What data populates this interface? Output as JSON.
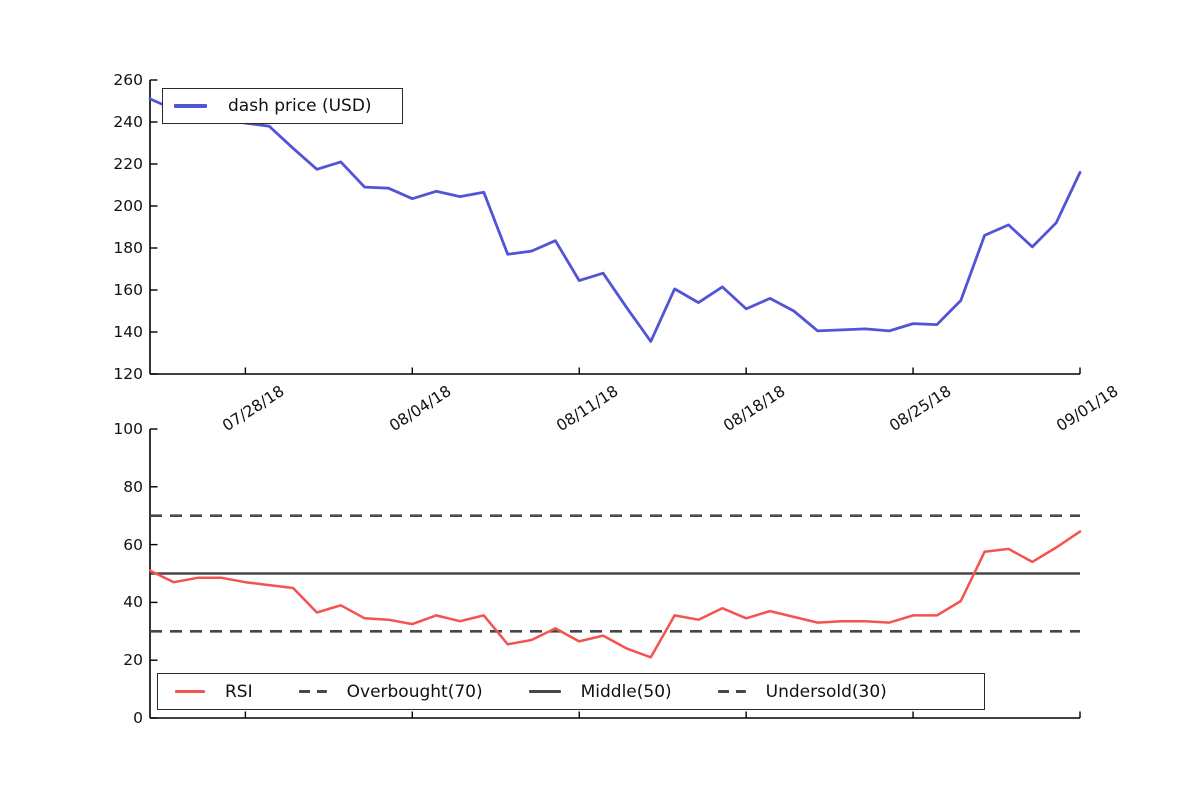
{
  "figure": {
    "background": "#ffffff",
    "text_color": "#111111",
    "spine_color": "#000000"
  },
  "chart_data": [
    {
      "type": "line",
      "panel": "top",
      "title": "",
      "xlabel": "",
      "ylabel": "",
      "ylim": [
        120,
        260
      ],
      "y_tick_labels": [
        "260",
        "240",
        "220",
        "200",
        "180",
        "160",
        "140",
        "120"
      ],
      "x_tick_labels": [
        "07/28/18",
        "08/04/18",
        "08/11/18",
        "08/18/18",
        "08/25/18",
        "09/01/18"
      ],
      "x_tick_indices": [
        4,
        11,
        18,
        25,
        32,
        39
      ],
      "grid": false,
      "legend": {
        "position": "upper-left",
        "items": [
          "dash price (USD)"
        ]
      },
      "series": [
        {
          "name": "dash price (USD)",
          "color": "#5254d6",
          "values": [
            251,
            246,
            243.5,
            241.5,
            239.5,
            238,
            227.5,
            217.5,
            221,
            209,
            208.5,
            203.5,
            207,
            204.5,
            206.5,
            177,
            178.5,
            183.5,
            164.5,
            168,
            151.5,
            135.5,
            160.5,
            154,
            161.5,
            151,
            156,
            150,
            140.5,
            141,
            141.5,
            140.5,
            144,
            143.5,
            155,
            186,
            191,
            180.5,
            192,
            216
          ]
        }
      ]
    },
    {
      "type": "line",
      "panel": "bottom",
      "title": "",
      "xlabel": "",
      "ylabel": "",
      "ylim": [
        0,
        100
      ],
      "y_tick_labels": [
        "100",
        "80",
        "60",
        "40",
        "20",
        "0"
      ],
      "x_tick_labels": [],
      "x_tick_indices": [
        4,
        11,
        18,
        25,
        32,
        39
      ],
      "grid": false,
      "legend": {
        "position": "lower-left",
        "items": [
          "RSI",
          "Overbought(70)",
          "Middle(50)",
          "Undersold(30)"
        ]
      },
      "series": [
        {
          "name": "RSI",
          "color": "#f4534f",
          "values": [
            51,
            47,
            48.5,
            48.5,
            47,
            46,
            45,
            36.5,
            39,
            34.5,
            34,
            32.5,
            35.5,
            33.5,
            35.5,
            25.5,
            27,
            31,
            26.5,
            28.5,
            24,
            21,
            35.5,
            34,
            38,
            34.5,
            37,
            35,
            33,
            33.5,
            33.5,
            33,
            35.5,
            35.5,
            40.5,
            57.5,
            58.5,
            54,
            59,
            64.5
          ]
        }
      ],
      "hlines": [
        {
          "label": "Overbought(70)",
          "value": 70,
          "style": "dashed",
          "color": "#474747"
        },
        {
          "label": "Middle(50)",
          "value": 50,
          "style": "solid",
          "color": "#474747"
        },
        {
          "label": "Undersold(30)",
          "value": 30,
          "style": "dashed",
          "color": "#474747"
        }
      ]
    }
  ]
}
